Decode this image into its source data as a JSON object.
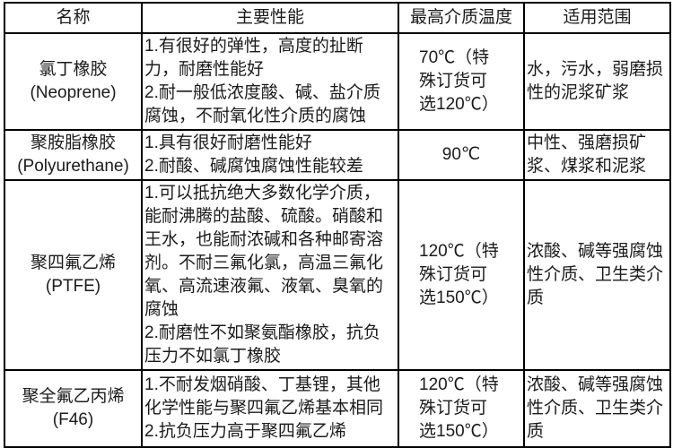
{
  "table": {
    "headers": [
      "名称",
      "主要性能",
      "最高介质温度",
      "适用范围"
    ],
    "rows": [
      {
        "name": "氯丁橡胶",
        "name_en": "(Neoprene)",
        "performance": [
          "1.有很好的弹性，高度的扯断力，耐磨性能好",
          "2.耐一般低浓度酸、碱、盐介质腐蚀，不耐氧化性介质的腐蚀"
        ],
        "max_temp": "70℃（特殊订货可选120℃）",
        "application": "水，污水，弱磨损性的泥浆矿浆"
      },
      {
        "name": "聚胺脂橡胶",
        "name_en": "(Polyurethane)",
        "performance": [
          "1.具有很好耐磨性能好",
          "2.耐酸、碱腐蚀腐蚀性能较差"
        ],
        "max_temp": "90℃",
        "application": "中性、强磨损矿浆、煤浆和泥浆"
      },
      {
        "name": "聚四氟乙烯",
        "name_en": "(PTFE)",
        "performance": [
          "1.可以抵抗绝大多数化学介质，能耐沸腾的盐酸、硫酸。硝酸和王水，也能耐浓碱和各种邮寄溶剂。不耐三氟化氯，高温三氟化氧、高流速液氟、液氧、臭氧的腐蚀",
          "2.耐磨性不如聚氨酯橡胶，抗负压力不如氯丁橡胶"
        ],
        "max_temp": "120℃（特殊订货可选150℃）",
        "application": "浓酸、碱等强腐蚀性介质、卫生类介质"
      },
      {
        "name": "聚全氟乙丙烯",
        "name_en": "(F46)",
        "performance": [
          "1.不耐发烟硝酸、丁基锂，其他化学性能与聚四氟乙烯基本相同",
          "2.抗负压力高于聚四氟乙烯"
        ],
        "max_temp": "120℃（特殊订货可选150℃）",
        "application": "浓酸、碱等强腐蚀性介质、卫生类介质"
      }
    ]
  }
}
